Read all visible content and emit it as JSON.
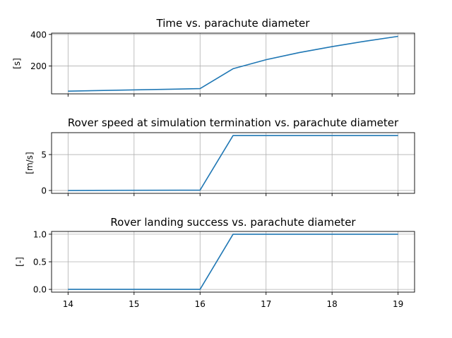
{
  "chart_data": [
    {
      "type": "line",
      "title": "Time vs. parachute diameter",
      "xlabel": "",
      "ylabel": "[s]",
      "x": [
        14,
        16,
        16.5,
        17,
        17.5,
        18,
        18.5,
        19
      ],
      "series": [
        {
          "values": [
            41,
            57,
            183,
            240,
            285,
            323,
            357,
            388
          ]
        }
      ],
      "xlim": [
        13.75,
        19.25
      ],
      "ylim": [
        24,
        408
      ],
      "xticks": [
        14,
        15,
        16,
        17,
        18,
        19
      ],
      "yticks": [
        200,
        400
      ],
      "ytick_labels": [
        "200",
        "400"
      ],
      "show_xtick_labels": false,
      "grid": true,
      "color": "#1f77b4"
    },
    {
      "type": "line",
      "title": "Rover speed at simulation termination vs. parachute diameter",
      "xlabel": "",
      "ylabel": "[m/s]",
      "x": [
        14,
        16,
        16.5,
        17,
        17.5,
        18,
        18.5,
        19
      ],
      "series": [
        {
          "values": [
            0,
            0.05,
            7.65,
            7.65,
            7.65,
            7.65,
            7.65,
            7.65
          ]
        }
      ],
      "xlim": [
        13.75,
        19.25
      ],
      "ylim": [
        -0.4,
        8.05
      ],
      "xticks": [
        14,
        15,
        16,
        17,
        18,
        19
      ],
      "yticks": [
        0,
        5
      ],
      "ytick_labels": [
        "0",
        "5"
      ],
      "show_xtick_labels": false,
      "grid": true,
      "color": "#1f77b4"
    },
    {
      "type": "line",
      "title": "Rover landing success vs. parachute diameter",
      "xlabel": "",
      "ylabel": "[-]",
      "x": [
        14,
        16,
        16.5,
        17,
        17.5,
        18,
        18.5,
        19
      ],
      "series": [
        {
          "values": [
            0,
            0,
            1,
            1,
            1,
            1,
            1,
            1
          ]
        }
      ],
      "xlim": [
        13.75,
        19.25
      ],
      "ylim": [
        -0.05,
        1.05
      ],
      "xticks": [
        14,
        15,
        16,
        17,
        18,
        19
      ],
      "xtick_labels": [
        "14",
        "15",
        "16",
        "17",
        "18",
        "19"
      ],
      "yticks": [
        0,
        0.5,
        1
      ],
      "ytick_labels": [
        "0.0",
        "0.5",
        "1.0"
      ],
      "show_xtick_labels": true,
      "grid": true,
      "color": "#1f77b4"
    }
  ]
}
